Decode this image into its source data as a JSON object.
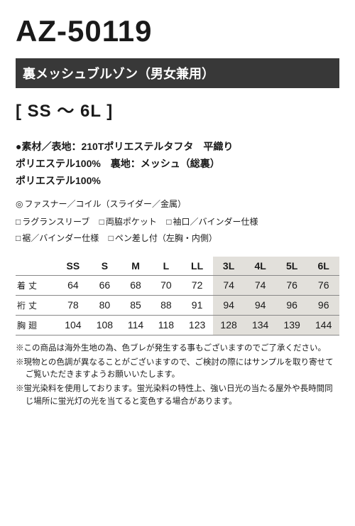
{
  "product_code": "AZ-50119",
  "product_name": "裏メッシュブルゾン（男女兼用）",
  "size_range": "[ SS ～ 6L ]",
  "material": {
    "line1": "●素材／表地：210Tポリエステルタフタ　平織り",
    "line2": "ポリエステル100%　裏地：メッシュ（総裏）",
    "line3": "ポリエステル100%"
  },
  "fastener": "ファスナー／コイル（スライダー／金属）",
  "features": {
    "row1": [
      "ラグランスリーブ",
      "両脇ポケット",
      "袖口／バインダー仕様"
    ],
    "row2": [
      "裾／バインダー仕様",
      "ペン差し付（左胸・内側）"
    ]
  },
  "size_table": {
    "columns": [
      "SS",
      "S",
      "M",
      "L",
      "LL",
      "3L",
      "4L",
      "5L",
      "6L"
    ],
    "shade_from_index": 5,
    "rows": [
      {
        "label": "着丈",
        "values": [
          64,
          66,
          68,
          70,
          72,
          74,
          74,
          76,
          76
        ]
      },
      {
        "label": "裄丈",
        "values": [
          78,
          80,
          85,
          88,
          91,
          94,
          94,
          96,
          96
        ]
      },
      {
        "label": "胸廻",
        "values": [
          104,
          108,
          114,
          118,
          123,
          128,
          134,
          139,
          144
        ]
      }
    ]
  },
  "notes": [
    "※この商品は海外生地の為、色ブレが発生する事もございますのでご了承ください。",
    "※現物との色調が異なることがございますので、ご検討の際にはサンプルを取り寄せてご覧いただきますようお願いいたします。",
    "※蛍光染料を使用しております。蛍光染料の特性上、強い日光の当たる屋外や長時間同じ場所に蛍光灯の光を当てると変色する場合があります。"
  ],
  "colors": {
    "bar_bg": "#383838",
    "shade_bg": "#e2e0db"
  }
}
